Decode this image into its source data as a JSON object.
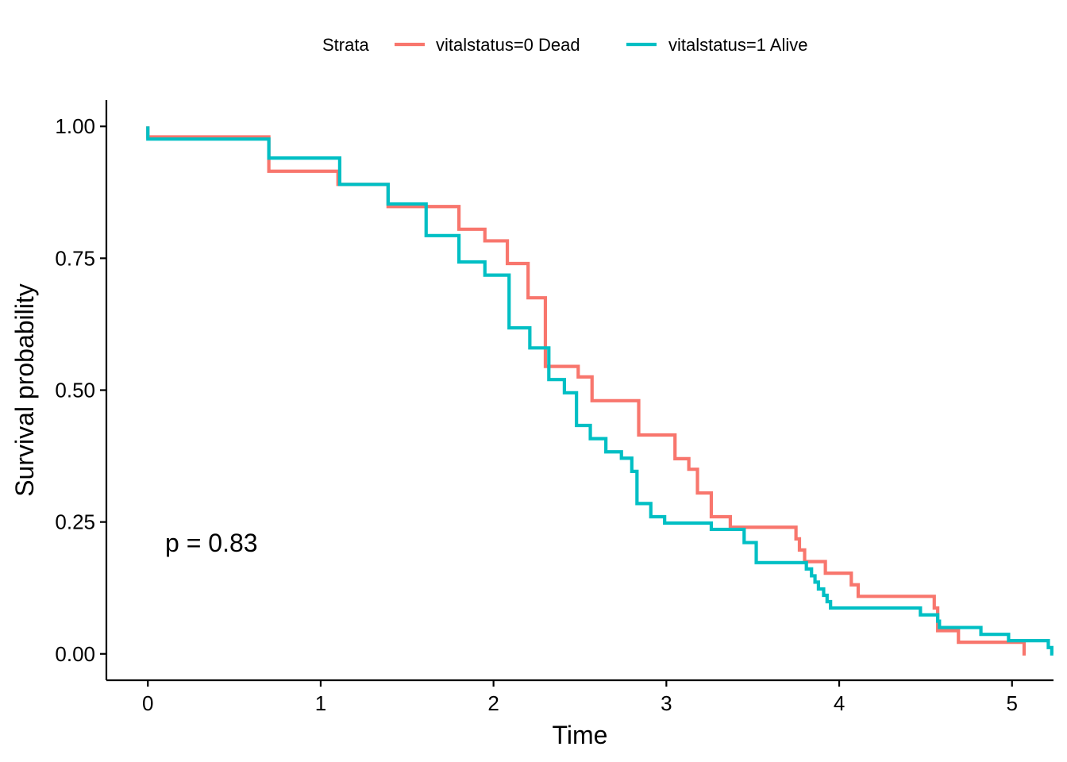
{
  "chart_data": {
    "type": "line",
    "xlabel": "Time",
    "ylabel": "Survival probability",
    "xlim": [
      -0.24,
      5.24
    ],
    "ylim": [
      -0.05,
      1.05
    ],
    "xticks": [
      0,
      1,
      2,
      3,
      4,
      5
    ],
    "yticks": [
      0,
      0.25,
      0.5,
      0.75,
      1
    ],
    "xtick_labels": [
      "0",
      "1",
      "2",
      "3",
      "4",
      "5"
    ],
    "ytick_labels": [
      "0.00",
      "0.25",
      "0.50",
      "0.75",
      "1.00"
    ],
    "grid": false,
    "legend": {
      "title": "Strata",
      "position": "top"
    },
    "annotation": {
      "text": "p = 0.83",
      "x": 0.1,
      "y": 0.2
    },
    "series": [
      {
        "name": "vitalstatus=0 Dead",
        "color": "#F8766D",
        "step": "post",
        "x": [
          0,
          0.7,
          1.1,
          1.39,
          1.61,
          1.8,
          1.95,
          2.08,
          2.2,
          2.3,
          2.49,
          2.57,
          2.84,
          3.05,
          3.13,
          3.18,
          3.26,
          3.37,
          3.75,
          3.77,
          3.8,
          3.92,
          4.07,
          4.11,
          4.55,
          4.57,
          4.69,
          5.07
        ],
        "y": [
          0.98,
          0.915,
          0.89,
          0.848,
          0.848,
          0.805,
          0.783,
          0.74,
          0.675,
          0.545,
          0.525,
          0.48,
          0.415,
          0.37,
          0.35,
          0.305,
          0.26,
          0.24,
          0.218,
          0.197,
          0.175,
          0.153,
          0.131,
          0.109,
          0.087,
          0.044,
          0.022,
          0.0
        ]
      },
      {
        "name": "vitalstatus=1 Alive",
        "color": "#00BFC4",
        "step": "post",
        "x": [
          0,
          0.7,
          1.11,
          1.39,
          1.61,
          1.8,
          1.95,
          2.09,
          2.21,
          2.32,
          2.41,
          2.48,
          2.56,
          2.65,
          2.74,
          2.8,
          2.83,
          2.91,
          2.99,
          3.26,
          3.45,
          3.52,
          3.81,
          3.84,
          3.86,
          3.88,
          3.91,
          3.93,
          3.95,
          4.47,
          4.57,
          4.58,
          4.82,
          4.98,
          5.21,
          5.23
        ],
        "y": [
          0.976,
          0.94,
          0.89,
          0.853,
          0.793,
          0.743,
          0.718,
          0.618,
          0.58,
          0.52,
          0.495,
          0.433,
          0.408,
          0.383,
          0.371,
          0.346,
          0.285,
          0.26,
          0.248,
          0.236,
          0.211,
          0.173,
          0.161,
          0.148,
          0.136,
          0.123,
          0.111,
          0.099,
          0.087,
          0.074,
          0.062,
          0.05,
          0.037,
          0.025,
          0.012,
          0.0
        ]
      }
    ]
  }
}
